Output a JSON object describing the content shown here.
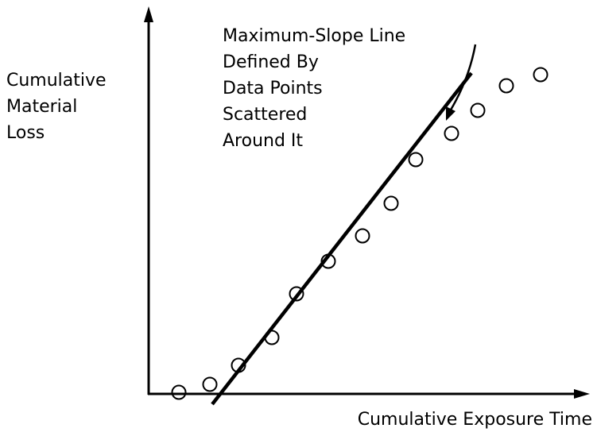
{
  "y_axis_label": [
    "Cumulative",
    "Material",
    "Loss"
  ],
  "x_axis_label": "Cumulative Exposure Time",
  "annotation": [
    "Maximum-Slope Line",
    "Defined By",
    "Data Points",
    "Scattered",
    "Around It"
  ]
}
